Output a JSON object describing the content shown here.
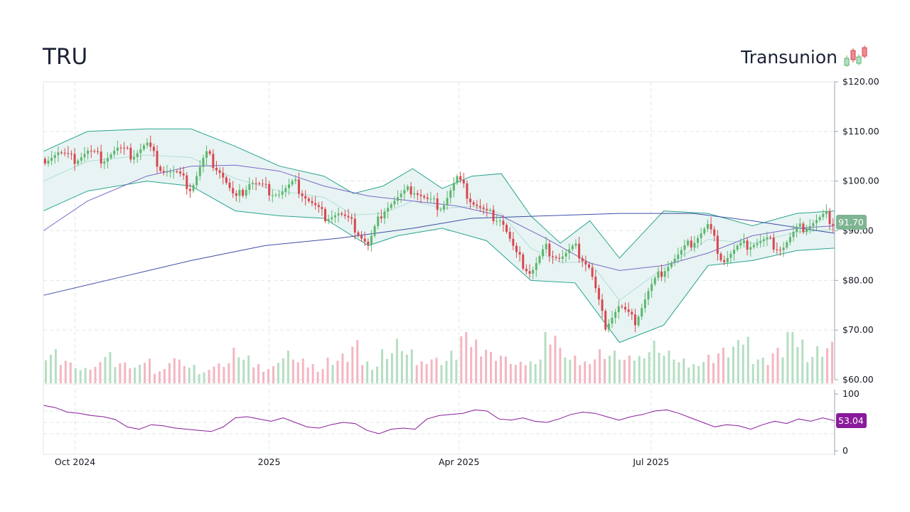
{
  "header": {
    "ticker": "TRU",
    "company": "Transunion"
  },
  "colors": {
    "up": "#5cb66d",
    "down": "#d9464f",
    "up_volume": "#b5dec1",
    "down_volume": "#f4b6c1",
    "band_fill": "#e7f4f3",
    "band_line": "#2aa38d",
    "sma50": "#7d68c9",
    "sma200": "#3e4ea6",
    "rsi": "#8a1b9a",
    "price_tag": "#7fb593",
    "rsi_tag": "#8a1b9a"
  },
  "chart_data": [
    {
      "type": "candlestick",
      "name": "price",
      "y_axis": {
        "range": [
          60,
          120
        ],
        "ticks": [
          "$60.00",
          "$70.00",
          "$80.00",
          "$90.00",
          "$100.00",
          "$110.00",
          "$120.00"
        ]
      },
      "x_axis": {
        "range": [
          "2024-09-16",
          "2025-09-26"
        ],
        "ticks": [
          {
            "date": "2024-10-01",
            "label": "Oct 2024"
          },
          {
            "date": "2025-01-01",
            "label": "2025"
          },
          {
            "date": "2025-04-01",
            "label": "Apr 2025"
          },
          {
            "date": "2025-07-01",
            "label": "Jul 2025"
          }
        ]
      },
      "close_path": [
        [
          "2024-09-16",
          104.5
        ],
        [
          "2024-09-23",
          105.8
        ],
        [
          "2024-09-30",
          104.2
        ],
        [
          "2024-10-07",
          106.0
        ],
        [
          "2024-10-14",
          104.5
        ],
        [
          "2024-10-21",
          106.5
        ],
        [
          "2024-10-28",
          105.2
        ],
        [
          "2024-11-04",
          107.5
        ],
        [
          "2024-11-11",
          102.5
        ],
        [
          "2024-11-18",
          101.5
        ],
        [
          "2024-11-25",
          98.5
        ],
        [
          "2024-12-02",
          105.5
        ],
        [
          "2024-12-09",
          102.0
        ],
        [
          "2024-12-16",
          96.0
        ],
        [
          "2024-12-23",
          100.0
        ],
        [
          "2024-12-30",
          98.5
        ],
        [
          "2025-01-06",
          97.5
        ],
        [
          "2025-01-13",
          99.5
        ],
        [
          "2025-01-20",
          96.0
        ],
        [
          "2025-01-27",
          93.0
        ],
        [
          "2025-02-03",
          93.5
        ],
        [
          "2025-02-10",
          91.0
        ],
        [
          "2025-02-17",
          87.0
        ],
        [
          "2025-02-24",
          94.5
        ],
        [
          "2025-03-03",
          96.5
        ],
        [
          "2025-03-10",
          98.5
        ],
        [
          "2025-03-17",
          96.0
        ],
        [
          "2025-03-24",
          95.0
        ],
        [
          "2025-03-31",
          100.5
        ],
        [
          "2025-04-07",
          96.0
        ],
        [
          "2025-04-14",
          93.5
        ],
        [
          "2025-04-21",
          92.5
        ],
        [
          "2025-04-28",
          85.0
        ],
        [
          "2025-05-05",
          81.5
        ],
        [
          "2025-05-12",
          86.5
        ],
        [
          "2025-05-19",
          84.5
        ],
        [
          "2025-05-26",
          86.5
        ],
        [
          "2025-06-02",
          82.5
        ],
        [
          "2025-06-09",
          71.0
        ],
        [
          "2025-06-16",
          75.0
        ],
        [
          "2025-06-23",
          71.5
        ],
        [
          "2025-06-30",
          78.0
        ],
        [
          "2025-07-07",
          82.5
        ],
        [
          "2025-07-14",
          85.0
        ],
        [
          "2025-07-21",
          88.0
        ],
        [
          "2025-07-28",
          91.0
        ],
        [
          "2025-08-04",
          84.0
        ],
        [
          "2025-08-11",
          86.5
        ],
        [
          "2025-08-18",
          87.5
        ],
        [
          "2025-08-25",
          88.0
        ],
        [
          "2025-09-01",
          86.5
        ],
        [
          "2025-09-08",
          90.0
        ],
        [
          "2025-09-15",
          91.5
        ],
        [
          "2025-09-22",
          93.0
        ],
        [
          "2025-09-26",
          91.7
        ]
      ],
      "sma50_path": [
        [
          "2024-09-16",
          90.0
        ],
        [
          "2024-10-07",
          96.0
        ],
        [
          "2024-11-04",
          101.0
        ],
        [
          "2024-11-25",
          103.0
        ],
        [
          "2024-12-16",
          103.2
        ],
        [
          "2025-01-06",
          102.0
        ],
        [
          "2025-01-27",
          99.0
        ],
        [
          "2025-02-17",
          97.0
        ],
        [
          "2025-03-10",
          96.0
        ],
        [
          "2025-03-31",
          95.0
        ],
        [
          "2025-04-21",
          93.0
        ],
        [
          "2025-05-12",
          88.5
        ],
        [
          "2025-06-02",
          83.5
        ],
        [
          "2025-06-16",
          82.0
        ],
        [
          "2025-07-07",
          83.0
        ],
        [
          "2025-07-28",
          85.5
        ],
        [
          "2025-08-18",
          89.0
        ],
        [
          "2025-09-08",
          90.5
        ],
        [
          "2025-09-26",
          91.0
        ]
      ],
      "sma200_path": [
        [
          "2024-09-16",
          77.0
        ],
        [
          "2024-10-21",
          80.5
        ],
        [
          "2024-11-25",
          84.0
        ],
        [
          "2024-12-30",
          87.0
        ],
        [
          "2025-02-03",
          88.5
        ],
        [
          "2025-03-10",
          90.5
        ],
        [
          "2025-04-07",
          92.5
        ],
        [
          "2025-05-12",
          93.0
        ],
        [
          "2025-06-16",
          93.5
        ],
        [
          "2025-07-21",
          93.5
        ],
        [
          "2025-08-18",
          92.0
        ],
        [
          "2025-09-26",
          89.5
        ]
      ],
      "bollinger_upper": [
        [
          "2024-09-16",
          106.0
        ],
        [
          "2024-10-07",
          110.0
        ],
        [
          "2024-11-04",
          110.5
        ],
        [
          "2024-11-25",
          110.5
        ],
        [
          "2024-12-16",
          107.0
        ],
        [
          "2025-01-06",
          103.0
        ],
        [
          "2025-01-27",
          101.0
        ],
        [
          "2025-02-10",
          97.5
        ],
        [
          "2025-02-24",
          99.0
        ],
        [
          "2025-03-10",
          102.5
        ],
        [
          "2025-03-24",
          98.5
        ],
        [
          "2025-04-07",
          101.0
        ],
        [
          "2025-04-21",
          101.5
        ],
        [
          "2025-05-05",
          93.0
        ],
        [
          "2025-05-19",
          87.5
        ],
        [
          "2025-06-02",
          92.0
        ],
        [
          "2025-06-16",
          84.5
        ],
        [
          "2025-07-07",
          94.0
        ],
        [
          "2025-07-28",
          93.5
        ],
        [
          "2025-08-18",
          91.0
        ],
        [
          "2025-09-08",
          93.5
        ],
        [
          "2025-09-26",
          94.0
        ]
      ],
      "bollinger_lower": [
        [
          "2024-09-16",
          94.0
        ],
        [
          "2024-10-07",
          98.0
        ],
        [
          "2024-11-04",
          100.0
        ],
        [
          "2024-11-25",
          99.0
        ],
        [
          "2024-12-16",
          94.0
        ],
        [
          "2025-01-06",
          93.0
        ],
        [
          "2025-01-27",
          92.5
        ],
        [
          "2025-02-17",
          87.0
        ],
        [
          "2025-03-03",
          89.0
        ],
        [
          "2025-03-24",
          90.5
        ],
        [
          "2025-04-14",
          88.0
        ],
        [
          "2025-05-05",
          80.0
        ],
        [
          "2025-05-26",
          79.5
        ],
        [
          "2025-06-16",
          67.5
        ],
        [
          "2025-07-07",
          71.0
        ],
        [
          "2025-07-28",
          83.0
        ],
        [
          "2025-08-18",
          84.0
        ],
        [
          "2025-09-08",
          86.0
        ],
        [
          "2025-09-26",
          86.5
        ]
      ],
      "volume_relative": [
        0.6,
        0.45,
        0.35,
        0.25,
        0.3,
        0.55,
        0.4,
        0.35,
        0.3,
        0.45,
        0.25,
        0.5,
        0.4,
        0.3,
        0.2,
        0.35,
        0.4,
        0.6,
        0.45,
        0.35,
        0.3,
        0.5,
        0.55,
        0.4,
        0.35,
        0.3,
        0.45,
        0.5,
        0.7,
        0.4,
        0.35,
        0.6,
        0.75,
        0.55,
        0.4,
        0.5,
        0.45,
        0.55,
        0.9,
        0.8,
        0.7,
        0.55,
        0.45,
        0.35,
        0.4,
        0.5,
        0.95,
        0.6,
        0.45,
        0.4,
        0.5,
        0.6,
        0.55,
        0.45,
        0.5,
        0.65,
        0.75,
        0.55,
        0.4,
        0.35,
        0.45,
        0.5,
        0.6,
        0.7,
        0.85,
        0.5,
        0.45,
        0.6,
        1.0,
        0.8,
        0.55,
        0.65,
        0.7
      ]
    },
    {
      "type": "line",
      "name": "RSI",
      "y_axis": {
        "range": [
          0,
          100
        ],
        "ticks": [
          "0",
          "100"
        ]
      },
      "values": [
        80,
        76,
        68,
        66,
        62,
        60,
        55,
        42,
        38,
        46,
        44,
        40,
        38,
        36,
        34,
        42,
        58,
        60,
        56,
        52,
        58,
        50,
        42,
        40,
        46,
        50,
        48,
        36,
        30,
        38,
        40,
        38,
        56,
        62,
        64,
        66,
        72,
        70,
        56,
        54,
        58,
        52,
        50,
        56,
        64,
        68,
        66,
        60,
        54,
        60,
        64,
        70,
        72,
        66,
        58,
        50,
        42,
        46,
        44,
        38,
        46,
        52,
        48,
        56,
        52,
        58,
        53
      ]
    }
  ],
  "price_tag": "91.70",
  "rsi_tag": "53.04"
}
